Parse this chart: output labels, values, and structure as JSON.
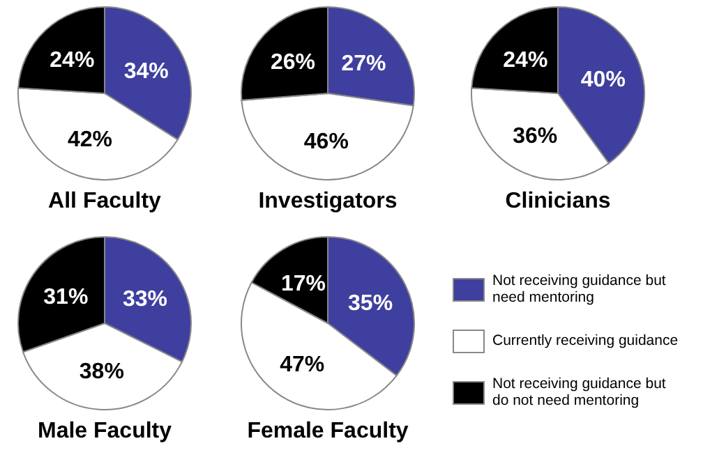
{
  "chart_data": [
    {
      "type": "pie",
      "title": "All Faculty",
      "categories": [
        null,
        null,
        null
      ],
      "values": [
        34,
        42,
        24
      ],
      "colors": [
        "#3f3f9f",
        "#ffffff",
        "#000000"
      ],
      "value_labels": [
        "34%",
        "42%",
        "24%"
      ]
    },
    {
      "type": "pie",
      "title": "Investigators",
      "categories": [
        null,
        null,
        null
      ],
      "values": [
        27,
        46,
        26
      ],
      "colors": [
        "#3f3f9f",
        "#ffffff",
        "#000000"
      ],
      "value_labels": [
        "27%",
        "46%",
        "26%"
      ]
    },
    {
      "type": "pie",
      "title": "Clinicians",
      "categories": [
        null,
        null,
        null
      ],
      "values": [
        40,
        36,
        24
      ],
      "colors": [
        "#3f3f9f",
        "#ffffff",
        "#000000"
      ],
      "value_labels": [
        "40%",
        "36%",
        "24%"
      ]
    },
    {
      "type": "pie",
      "title": "Male Faculty",
      "categories": [
        null,
        null,
        null
      ],
      "values": [
        33,
        38,
        31
      ],
      "colors": [
        "#3f3f9f",
        "#ffffff",
        "#000000"
      ],
      "value_labels": [
        "33%",
        "38%",
        "31%"
      ]
    },
    {
      "type": "pie",
      "title": "Female Faculty",
      "categories": [
        "Not receiving guidance but need mentoring",
        "Currently receiving guidance",
        "Not receiving guidance but do not need mentoring"
      ],
      "values": [
        35,
        47,
        17
      ],
      "colors": [
        "#3f3f9f",
        "#ffffff",
        "#000000"
      ],
      "value_labels": [
        "35%",
        "47%",
        "17%"
      ],
      "legend": "right"
    }
  ]
}
